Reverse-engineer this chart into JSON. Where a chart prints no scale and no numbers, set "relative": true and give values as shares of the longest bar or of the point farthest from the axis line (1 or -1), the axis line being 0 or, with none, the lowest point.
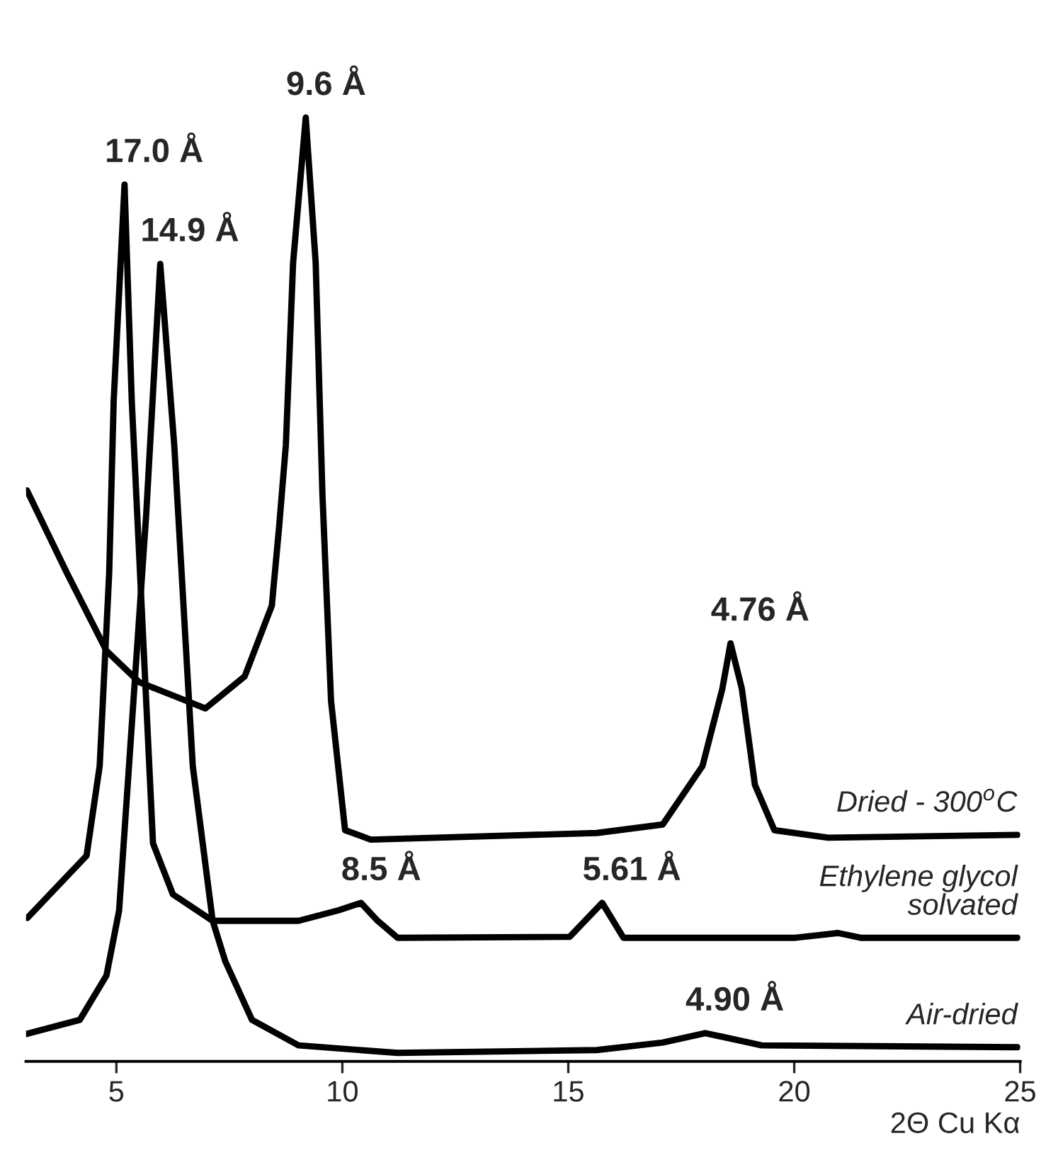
{
  "chart_data": {
    "type": "line",
    "relative": true,
    "xlabel": "2Θ Cu Kα",
    "xlim": [
      3,
      25
    ],
    "xticks": [
      5,
      10,
      15,
      20,
      25
    ],
    "grid": false,
    "legend": false,
    "marker": "none",
    "line_style": "solid",
    "series": [
      {
        "name": "Dried - 300$^{o}$C",
        "color": "#000000",
        "x": [
          3.02,
          3.91,
          4.78,
          5.5,
          6.97,
          7.84,
          8.44,
          8.6,
          8.75,
          8.91,
          9.19,
          9.41,
          9.56,
          9.75,
          10.06,
          10.63,
          15.63,
          17.09,
          17.97,
          18.41,
          18.59,
          18.84,
          19.13,
          19.56,
          20.75,
          24.94
        ],
        "values": [
          0.605,
          0.517,
          0.435,
          0.402,
          0.374,
          0.408,
          0.483,
          0.566,
          0.653,
          0.846,
          1,
          0.846,
          0.6,
          0.382,
          0.245,
          0.235,
          0.242,
          0.251,
          0.313,
          0.395,
          0.443,
          0.395,
          0.293,
          0.245,
          0.237,
          0.24
        ]
      },
      {
        "name": "Ethylene glycol\nsolvated",
        "color": "#000000",
        "x": [
          3.03,
          4.34,
          4.63,
          4.84,
          4.94,
          5.18,
          5.34,
          5.81,
          6.25,
          7.13,
          9.03,
          9.91,
          10.41,
          10.78,
          11.22,
          15.03,
          15.75,
          16.22,
          20.03,
          20.97,
          21.47,
          24.94
        ],
        "values": [
          0.152,
          0.218,
          0.313,
          0.517,
          0.7,
          0.929,
          0.7,
          0.231,
          0.177,
          0.149,
          0.149,
          0.16,
          0.168,
          0.149,
          0.131,
          0.132,
          0.168,
          0.131,
          0.131,
          0.136,
          0.131,
          0.131
        ]
      },
      {
        "name": "Air-dried",
        "color": "#000000",
        "x": [
          3.0,
          4.19,
          4.78,
          5.06,
          5.66,
          5.97,
          6.28,
          6.69,
          7.13,
          7.41,
          8.0,
          9.03,
          11.22,
          15.63,
          17.09,
          18.03,
          19.28,
          24.94
        ],
        "values": [
          0.029,
          0.044,
          0.091,
          0.16,
          0.58,
          0.845,
          0.653,
          0.313,
          0.149,
          0.106,
          0.044,
          0.017,
          0.009,
          0.012,
          0.02,
          0.03,
          0.017,
          0.015
        ]
      }
    ],
    "annotations": [
      {
        "text": "17.0 Å",
        "x": 5.18,
        "y": 0.929
      },
      {
        "text": "14.9 Å",
        "x": 5.97,
        "y": 0.845
      },
      {
        "text": "9.6 Å",
        "x": 9.19,
        "y": 1
      },
      {
        "text": "4.76 Å",
        "x": 18.59,
        "y": 0.443
      },
      {
        "text": "8.5 Å",
        "x": 10.41,
        "y": 0.168
      },
      {
        "text": "5.61 Å",
        "x": 15.75,
        "y": 0.168
      },
      {
        "text": "4.90 Å",
        "x": 18.03,
        "y": 0.03
      }
    ]
  }
}
